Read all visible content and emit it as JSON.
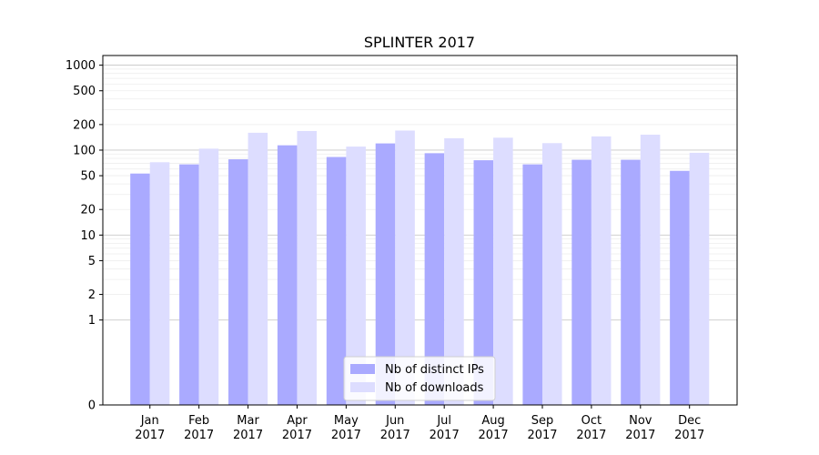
{
  "chart_data": {
    "type": "bar",
    "title": "SPLINTER 2017",
    "xlabel": "",
    "ylabel": "",
    "categories": [
      "Jan\n2017",
      "Feb\n2017",
      "Mar\n2017",
      "Apr\n2017",
      "May\n2017",
      "Jun\n2017",
      "Jul\n2017",
      "Aug\n2017",
      "Sep\n2017",
      "Oct\n2017",
      "Nov\n2017",
      "Dec\n2017"
    ],
    "series": [
      {
        "name": "Nb of distinct IPs",
        "color": "#aaaaff",
        "values": [
          53,
          68,
          78,
          114,
          83,
          120,
          92,
          76,
          68,
          77,
          77,
          57
        ]
      },
      {
        "name": "Nb of downloads",
        "color": "#ddddff",
        "values": [
          72,
          104,
          160,
          168,
          110,
          170,
          138,
          140,
          121,
          145,
          152,
          93
        ]
      }
    ],
    "yscale": "symlog",
    "ylim": [
      0,
      1300
    ],
    "yticks": [
      0,
      1,
      2,
      5,
      10,
      20,
      50,
      100,
      200,
      500,
      1000
    ],
    "ytick_labels": [
      "0",
      "1",
      "2",
      "5",
      "10",
      "20",
      "50",
      "100",
      "200",
      "500",
      "1000"
    ],
    "grid": true,
    "legend_position": "lower-center"
  }
}
